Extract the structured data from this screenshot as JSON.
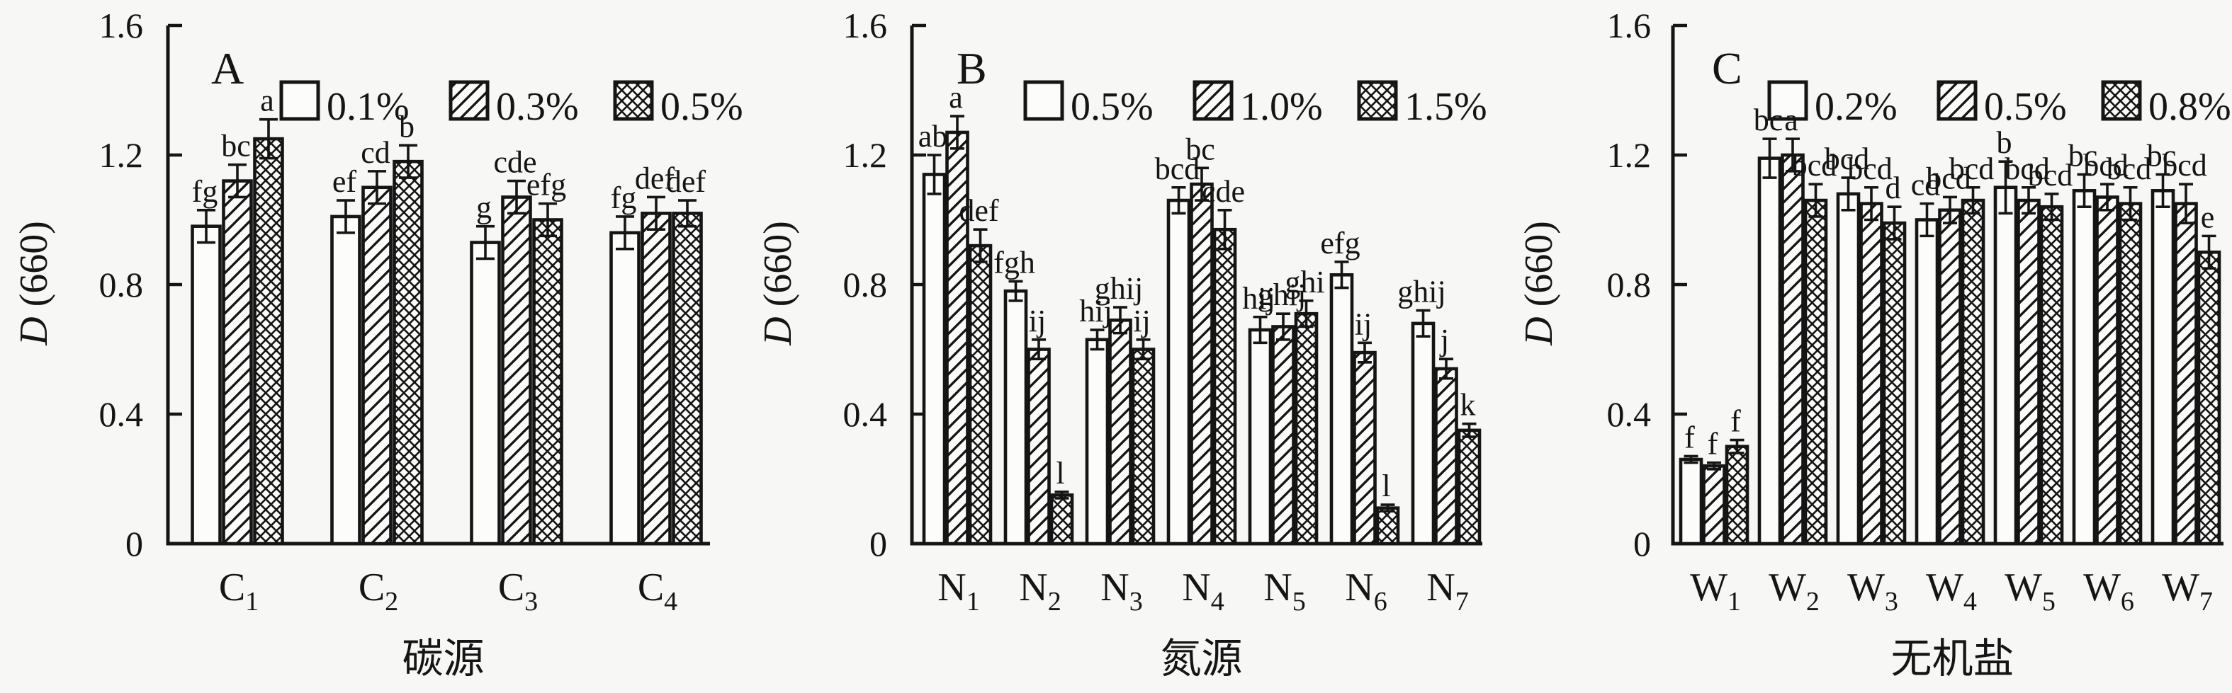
{
  "figure": {
    "background": "#f7f7f5",
    "ink": "#151515",
    "bar_fill": "#fcfcfa",
    "description_visible_text_only": true
  },
  "axis": {
    "ylabel_italic": "D",
    "ylabel_rest": " (660)",
    "ymax": 1.6,
    "yticks": [
      0,
      0.4,
      0.8,
      1.2,
      1.6
    ]
  },
  "chart_data": [
    {
      "type": "bar",
      "panel_letter": "A",
      "xlabel": "碳源",
      "ylabel": "D (660)",
      "ylabel_italic": "D",
      "ylabel_rest": " (660)",
      "ylim": [
        0,
        1.6
      ],
      "yticks": [
        0,
        0.4,
        0.8,
        1.2,
        1.6
      ],
      "grid": false,
      "legend_position": "top",
      "categories": [
        {
          "base": "C",
          "sub": "1"
        },
        {
          "base": "C",
          "sub": "2"
        },
        {
          "base": "C",
          "sub": "3"
        },
        {
          "base": "C",
          "sub": "4"
        }
      ],
      "series": [
        {
          "name": "0.1%",
          "pattern": "open",
          "values": [
            0.98,
            1.01,
            0.93,
            0.96
          ],
          "errors": [
            0.05,
            0.05,
            0.05,
            0.05
          ],
          "sig_letters": [
            "fg",
            "ef",
            "g",
            "fg"
          ]
        },
        {
          "name": "0.3%",
          "pattern": "diagonal-hatch",
          "values": [
            1.12,
            1.1,
            1.07,
            1.02
          ],
          "errors": [
            0.05,
            0.05,
            0.05,
            0.05
          ],
          "sig_letters": [
            "bc",
            "cd",
            "cde",
            "def"
          ]
        },
        {
          "name": "0.5%",
          "pattern": "crosshatch",
          "values": [
            1.25,
            1.18,
            1.0,
            1.02
          ],
          "errors": [
            0.06,
            0.05,
            0.05,
            0.04
          ],
          "sig_letters": [
            "a",
            "b",
            "efg",
            "def"
          ]
        }
      ]
    },
    {
      "type": "bar",
      "panel_letter": "B",
      "xlabel": "氮源",
      "ylabel": "D (660)",
      "ylabel_italic": "D",
      "ylabel_rest": " (660)",
      "ylim": [
        0,
        1.6
      ],
      "yticks": [
        0,
        0.4,
        0.8,
        1.2,
        1.6
      ],
      "grid": false,
      "legend_position": "top",
      "categories": [
        {
          "base": "N",
          "sub": "1"
        },
        {
          "base": "N",
          "sub": "2"
        },
        {
          "base": "N",
          "sub": "3"
        },
        {
          "base": "N",
          "sub": "4"
        },
        {
          "base": "N",
          "sub": "5"
        },
        {
          "base": "N",
          "sub": "6"
        },
        {
          "base": "N",
          "sub": "7"
        }
      ],
      "series": [
        {
          "name": "0.5%",
          "pattern": "open",
          "values": [
            1.14,
            0.78,
            0.63,
            1.06,
            0.66,
            0.83,
            0.68
          ],
          "errors": [
            0.06,
            0.03,
            0.03,
            0.04,
            0.04,
            0.04,
            0.04
          ],
          "sig_letters": [
            "ab",
            "fgh",
            "hij",
            "bcd",
            "hij",
            "efg",
            "ghij"
          ]
        },
        {
          "name": "1.0%",
          "pattern": "diagonal-hatch",
          "values": [
            1.27,
            0.6,
            0.69,
            1.11,
            0.67,
            0.59,
            0.54
          ],
          "errors": [
            0.05,
            0.03,
            0.04,
            0.05,
            0.04,
            0.03,
            0.03
          ],
          "sig_letters": [
            "a",
            "ij",
            "ghij",
            "bc",
            "ghij",
            "ij",
            "j"
          ]
        },
        {
          "name": "1.5%",
          "pattern": "crosshatch",
          "values": [
            0.92,
            0.15,
            0.6,
            0.97,
            0.71,
            0.11,
            0.35
          ],
          "errors": [
            0.05,
            0.01,
            0.03,
            0.06,
            0.04,
            0.01,
            0.02
          ],
          "sig_letters": [
            "def",
            "l",
            "ij",
            "cde",
            "ghi",
            "l",
            "k"
          ]
        }
      ]
    },
    {
      "type": "bar",
      "panel_letter": "C",
      "xlabel": "无机盐",
      "ylabel": "D (660)",
      "ylabel_italic": "D",
      "ylabel_rest": " (660)",
      "ylim": [
        0,
        1.6
      ],
      "yticks": [
        0,
        0.4,
        0.8,
        1.2,
        1.6
      ],
      "grid": false,
      "legend_position": "top",
      "categories": [
        {
          "base": "W",
          "sub": "1"
        },
        {
          "base": "W",
          "sub": "2"
        },
        {
          "base": "W",
          "sub": "3"
        },
        {
          "base": "W",
          "sub": "4"
        },
        {
          "base": "W",
          "sub": "5"
        },
        {
          "base": "W",
          "sub": "6"
        },
        {
          "base": "W",
          "sub": "7"
        }
      ],
      "series": [
        {
          "name": "0.2%",
          "pattern": "open",
          "values": [
            0.26,
            1.19,
            1.08,
            1.0,
            1.1,
            1.09,
            1.09
          ],
          "errors": [
            0.01,
            0.06,
            0.05,
            0.05,
            0.08,
            0.05,
            0.05
          ],
          "sig_letters": [
            "f",
            "bc",
            "bcd",
            "cd",
            "b",
            "bc",
            "bc"
          ]
        },
        {
          "name": "0.5%",
          "pattern": "diagonal-hatch",
          "values": [
            0.24,
            1.2,
            1.05,
            1.03,
            1.06,
            1.07,
            1.05
          ],
          "errors": [
            0.01,
            0.05,
            0.05,
            0.04,
            0.04,
            0.04,
            0.06
          ],
          "sig_letters": [
            "f",
            "a",
            "bcd",
            "bcd",
            "bcd",
            "bcd",
            "bcd"
          ]
        },
        {
          "name": "0.8%",
          "pattern": "crosshatch",
          "values": [
            0.3,
            1.06,
            0.99,
            1.06,
            1.04,
            1.05,
            0.9
          ],
          "errors": [
            0.02,
            0.05,
            0.05,
            0.04,
            0.04,
            0.05,
            0.05
          ],
          "sig_letters": [
            "f",
            "bcd",
            "d",
            "bcd",
            "bcd",
            "bcd",
            "e"
          ]
        }
      ]
    }
  ]
}
